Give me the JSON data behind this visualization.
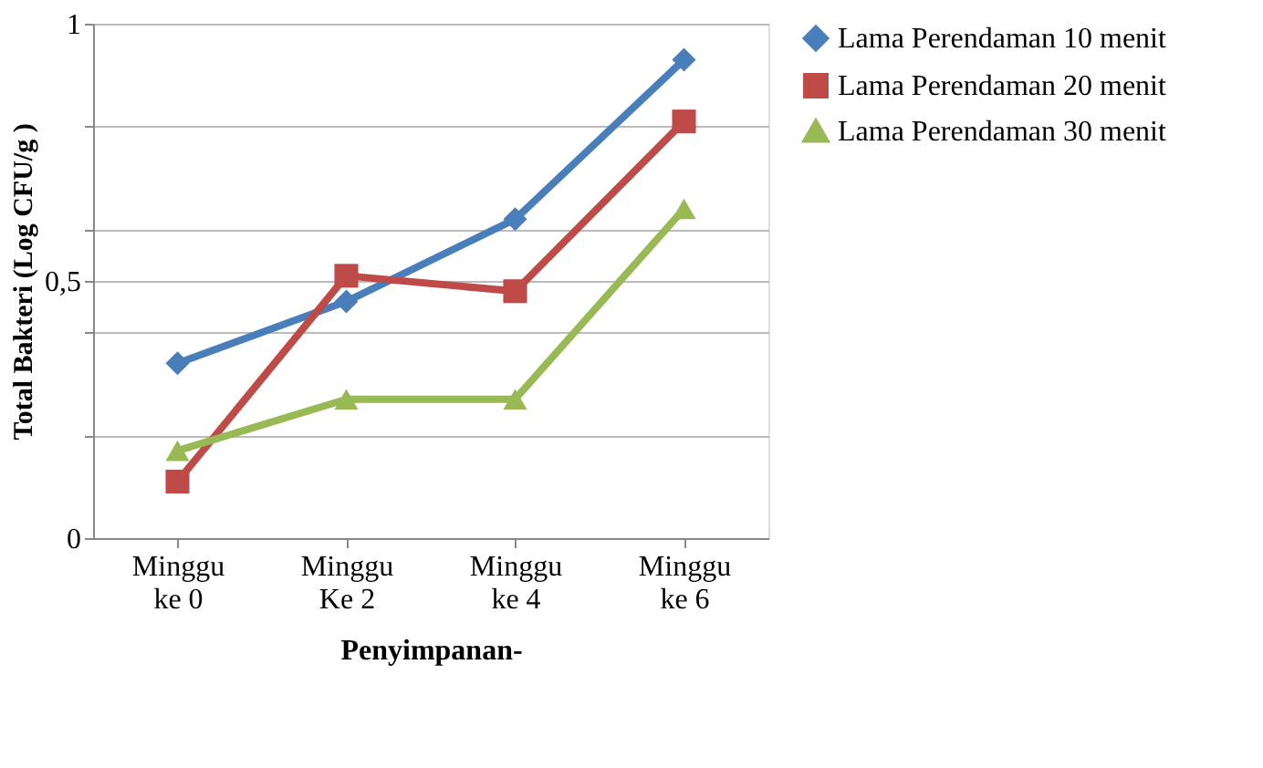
{
  "chart_data": {
    "type": "line",
    "xlabel": "Penyimpanan-",
    "ylabel": "Total Bakteri (Log CFU/g )",
    "categories": [
      "Minggu ke 0",
      "Minggu Ke 2",
      "Minggu ke 4",
      "Minggu ke 6"
    ],
    "ylim": [
      0,
      1
    ],
    "yticks": [
      0,
      {
        "value": 0.2,
        "label": null
      },
      {
        "value": 0.4,
        "label": null
      },
      {
        "value": 0.5,
        "label": "0,5"
      },
      {
        "value": 0.6,
        "label": null
      },
      {
        "value": 0.8,
        "label": null
      },
      1
    ],
    "grid": "y",
    "legend": "right",
    "line_style": "solid",
    "series": [
      {
        "name": "Lama Perendaman 10 menit",
        "color": "#4a7ebb",
        "marker": "diamond",
        "values": [
          0.34,
          0.46,
          0.62,
          0.93
        ]
      },
      {
        "name": "Lama Perendaman 20 menit",
        "color": "#be4b48",
        "marker": "square",
        "values": [
          0.11,
          0.51,
          0.48,
          0.81
        ]
      },
      {
        "name": "Lama Perendaman 30 menit",
        "color": "#98b954",
        "marker": "triangle",
        "values": [
          0.17,
          0.27,
          0.27,
          0.64
        ]
      }
    ]
  }
}
